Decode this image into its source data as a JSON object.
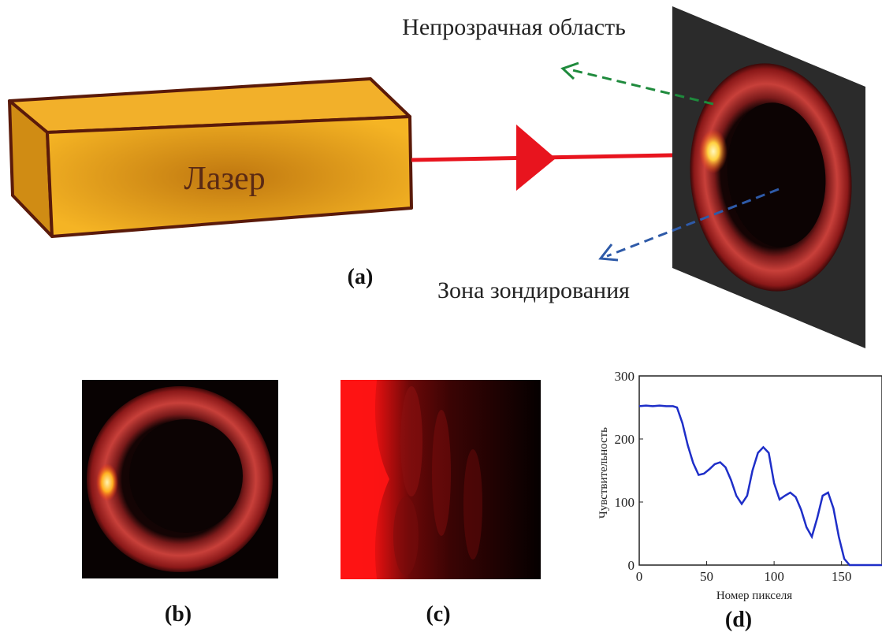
{
  "labels": {
    "laser": "Лазер",
    "opaque_region": "Непрозрачная область",
    "sensing_zone": "Зона зондирования",
    "panel_a": "(a)",
    "panel_b": "(b)",
    "panel_c": "(c)",
    "panel_d": "(d)"
  },
  "colors": {
    "laser_body": "#f0a81a",
    "laser_outline": "#5a1a0a",
    "beam": "#e8141e",
    "screen": "#2a2a2a",
    "green_arrow": "#1e8a3c",
    "blue_arrow": "#2e5aa8",
    "plot_line": "#1e2ec8"
  },
  "chart_data": {
    "type": "line",
    "title": "",
    "xlabel": "Номер пикселя",
    "ylabel": "Чувствительность",
    "xlim": [
      0,
      180
    ],
    "ylim": [
      0,
      300
    ],
    "x_ticks": [
      0,
      50,
      100,
      150
    ],
    "y_ticks": [
      0,
      100,
      200,
      300
    ],
    "grid": false,
    "series": [
      {
        "x": [
          0,
          5,
          10,
          15,
          20,
          25,
          28,
          32,
          36,
          40,
          44,
          48,
          52,
          56,
          60,
          64,
          68,
          72,
          76,
          80,
          84,
          88,
          92,
          96,
          100,
          104,
          108,
          112,
          116,
          120,
          124,
          128,
          132,
          136,
          140,
          144,
          148,
          152,
          156,
          160,
          170,
          180
        ],
        "y": [
          252,
          253,
          252,
          253,
          252,
          252,
          250,
          225,
          190,
          162,
          143,
          145,
          152,
          160,
          163,
          155,
          135,
          110,
          97,
          110,
          150,
          178,
          187,
          178,
          130,
          104,
          110,
          115,
          108,
          88,
          60,
          45,
          75,
          110,
          115,
          90,
          45,
          10,
          0,
          0,
          0,
          0
        ]
      }
    ]
  }
}
